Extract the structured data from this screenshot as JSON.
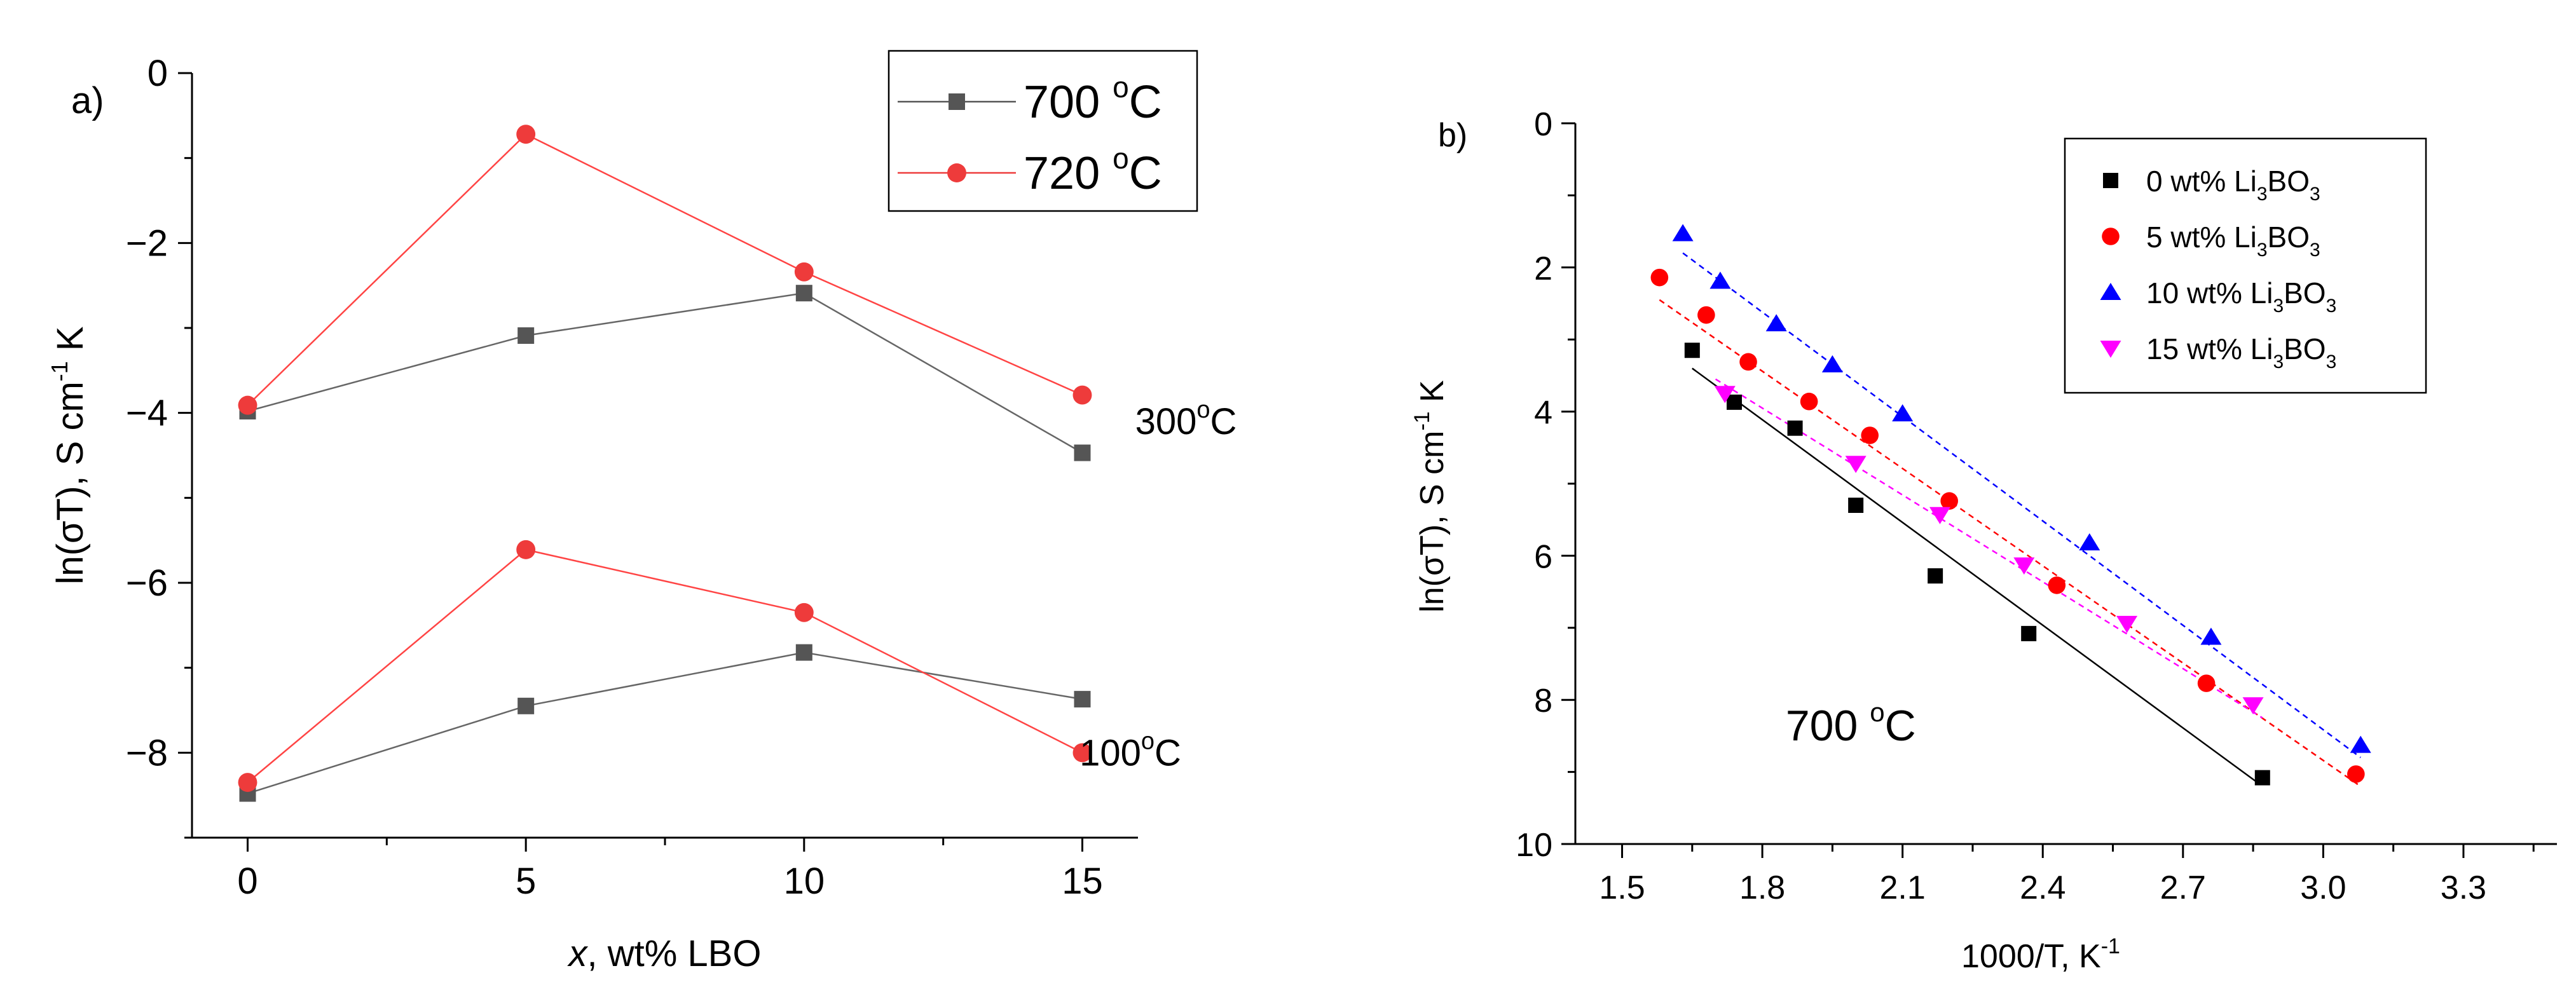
{
  "chart_data": [
    {
      "id": "a",
      "type": "line",
      "panel_label": "a)",
      "xlabel_italic": "x",
      "xlabel_rest": ", wt% LBO",
      "ylabel_main": "ln(σT), S cm",
      "ylabel_sup": "-1",
      "ylabel_tail": " K",
      "xlim": [
        -1,
        16
      ],
      "ylim": [
        -9,
        0
      ],
      "xticks": [
        0,
        5,
        10,
        15
      ],
      "yticks": [
        0,
        -2,
        -4,
        -6,
        -8
      ],
      "ytick_labels": [
        "0",
        "−2",
        "−4",
        "−6",
        "−8"
      ],
      "legend": {
        "placement": "top-right",
        "entries": [
          {
            "name": "700",
            "unit_sup": "o",
            "unit": "C",
            "marker": "square",
            "color": "#555555"
          },
          {
            "name": "720",
            "unit_sup": "o",
            "unit": "C",
            "marker": "circle",
            "color": "#ee3b3b"
          }
        ]
      },
      "annotations": [
        {
          "text": "300",
          "sup": "o",
          "tail": "C",
          "x": 15.95,
          "y": -4.1
        },
        {
          "text": "100",
          "sup": "o",
          "tail": "C",
          "x": 14.95,
          "y": -8.0
        }
      ],
      "series": [
        {
          "name": "700 °C",
          "group": "300 °C",
          "marker": "square",
          "color": "#555555",
          "line_color": "#666666",
          "x": [
            0,
            5,
            10,
            15
          ],
          "y": [
            -3.98,
            -3.09,
            -2.59,
            -4.47
          ]
        },
        {
          "name": "720 °C",
          "group": "300 °C",
          "marker": "circle",
          "color": "#ee3b3b",
          "line_color": "#ff4444",
          "x": [
            0,
            5,
            10,
            15
          ],
          "y": [
            -3.91,
            -0.72,
            -2.34,
            -3.79
          ]
        },
        {
          "name": "700 °C",
          "group": "100 °C",
          "marker": "square",
          "color": "#555555",
          "line_color": "#666666",
          "x": [
            0,
            5,
            10,
            15
          ],
          "y": [
            -8.48,
            -7.45,
            -6.82,
            -7.37
          ]
        },
        {
          "name": "720 °C",
          "group": "100 °C",
          "marker": "circle",
          "color": "#ee3b3b",
          "line_color": "#ff4444",
          "x": [
            0,
            5,
            10,
            15
          ],
          "y": [
            -8.35,
            -5.61,
            -6.35,
            -8.0
          ]
        }
      ]
    },
    {
      "id": "b",
      "type": "scatter",
      "panel_label": "b)",
      "xlabel_main": "1000/T, K",
      "xlabel_sup": "-1",
      "ylabel_main": "ln(σT), S cm",
      "ylabel_sup": "-1",
      "ylabel_tail": " K",
      "xlim": [
        1.4,
        3.5
      ],
      "ylim": [
        10,
        0
      ],
      "y_inverted": true,
      "xticks": [
        1.5,
        1.8,
        2.1,
        2.4,
        2.7,
        3.0,
        3.3
      ],
      "xtick_labels": [
        "1.5",
        "1.8",
        "2.1",
        "2.4",
        "2.7",
        "3.0",
        "3.3"
      ],
      "yticks": [
        0,
        2,
        4,
        6,
        8,
        10
      ],
      "ytick_labels": [
        "0",
        "2",
        "4",
        "6",
        "8",
        "10"
      ],
      "legend": {
        "placement": "top-right",
        "entries": [
          {
            "name": "0 wt% Li",
            "sub1": "3",
            "mid": "BO",
            "sub2": "3",
            "marker": "square",
            "color": "#000000"
          },
          {
            "name": "5 wt% Li",
            "sub1": "3",
            "mid": "BO",
            "sub2": "3",
            "marker": "circle",
            "color": "#ff0000"
          },
          {
            "name": "10 wt% Li",
            "sub1": "3",
            "mid": "BO",
            "sub2": "3",
            "marker": "triangle-up",
            "color": "#0000ff"
          },
          {
            "name": "15 wt% Li",
            "sub1": "3",
            "mid": "BO",
            "sub2": "3",
            "marker": "triangle-down",
            "color": "#ff00ff"
          }
        ]
      },
      "annotation": {
        "text": "700",
        "sup": "o",
        "tail": "C",
        "x": 1.85,
        "y": 8.35
      },
      "series": [
        {
          "name": "0 wt% Li3BO3",
          "marker": "square",
          "color": "#000000",
          "fit_color": "#000000",
          "fit_dash": false,
          "x": [
            1.65,
            1.74,
            1.87,
            2.0,
            2.17,
            2.37,
            2.87
          ],
          "y": [
            3.15,
            3.87,
            4.23,
            5.3,
            6.28,
            7.08,
            9.08
          ],
          "fit": [
            [
              1.65,
              3.4
            ],
            [
              2.86,
              9.15
            ]
          ]
        },
        {
          "name": "5 wt% Li3BO3",
          "marker": "circle",
          "color": "#ff0000",
          "fit_color": "#ff0000",
          "fit_dash": true,
          "x": [
            1.58,
            1.68,
            1.77,
            1.9,
            2.03,
            2.2,
            2.43,
            2.75,
            3.07
          ],
          "y": [
            2.14,
            2.66,
            3.31,
            3.86,
            4.33,
            5.24,
            6.41,
            7.77,
            9.03
          ],
          "fit": [
            [
              1.58,
              2.45
            ],
            [
              3.08,
              9.2
            ]
          ]
        },
        {
          "name": "10 wt% Li3BO3",
          "marker": "triangle-up",
          "color": "#0000ff",
          "fit_color": "#0000ff",
          "fit_dash": true,
          "x": [
            1.63,
            1.71,
            1.83,
            1.95,
            2.1,
            2.5,
            2.76,
            3.08
          ],
          "y": [
            1.53,
            2.19,
            2.78,
            3.35,
            4.03,
            5.82,
            7.13,
            8.63
          ],
          "fit": [
            [
              1.63,
              1.8
            ],
            [
              3.08,
              8.8
            ]
          ]
        },
        {
          "name": "15 wt% Li3BO3",
          "marker": "triangle-down",
          "color": "#ff00ff",
          "fit_color": "#ff00ff",
          "fit_dash": true,
          "x": [
            1.72,
            2.0,
            2.18,
            2.36,
            2.58,
            2.85
          ],
          "y": [
            3.75,
            4.72,
            5.43,
            6.13,
            6.94,
            8.07
          ],
          "fit": [
            [
              1.7,
              3.55
            ],
            [
              2.87,
              8.25
            ]
          ]
        }
      ]
    }
  ]
}
